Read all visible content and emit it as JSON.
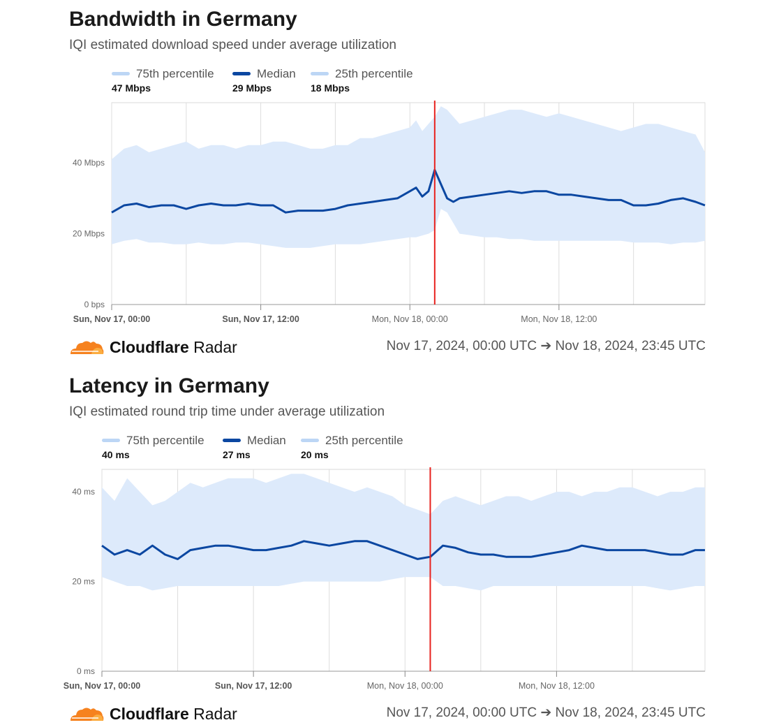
{
  "charts": [
    {
      "title": "Bandwidth in Germany",
      "subtitle": "IQI estimated download speed under average utilization",
      "legend": [
        {
          "name": "75th percentile",
          "value": "47 Mbps",
          "color": "#bcd6f5"
        },
        {
          "name": "Median",
          "value": "29 Mbps",
          "color": "#0b47a1"
        },
        {
          "name": "25th percentile",
          "value": "18 Mbps",
          "color": "#bcd6f5"
        }
      ],
      "brand": {
        "name_bold": "Cloudflare",
        "name_regular": " Radar"
      },
      "date_range": "Nov 17, 2024, 00:00 UTC ➔ Nov 18, 2024, 23:45 UTC"
    },
    {
      "title": "Latency in Germany",
      "subtitle": "IQI estimated round trip time under average utilization",
      "legend": [
        {
          "name": "75th percentile",
          "value": "40 ms",
          "color": "#bcd6f5"
        },
        {
          "name": "Median",
          "value": "27 ms",
          "color": "#0b47a1"
        },
        {
          "name": "25th percentile",
          "value": "20 ms",
          "color": "#bcd6f5"
        }
      ],
      "brand": {
        "name_bold": "Cloudflare",
        "name_regular": " Radar"
      },
      "date_range": "Nov 17, 2024, 00:00 UTC ➔ Nov 18, 2024, 23:45 UTC"
    }
  ],
  "chart_data": [
    {
      "type": "area",
      "title": "Bandwidth in Germany",
      "unit": "Mbps",
      "ylim": [
        0,
        57
      ],
      "yticks": [
        0,
        20,
        40
      ],
      "ytick_labels": [
        "0 bps",
        "20 Mbps",
        "40 Mbps"
      ],
      "xlim": [
        0,
        47.75
      ],
      "xticks": [
        0,
        12,
        24,
        36
      ],
      "xtick_labels": [
        "Sun, Nov 17, 00:00",
        "Sun, Nov 17, 12:00",
        "Mon, Nov 18, 00:00",
        "Mon, Nov 18, 12:00"
      ],
      "xtick_bold": [
        true,
        true,
        false,
        false
      ],
      "grid_x": [
        0,
        6,
        12,
        18,
        24,
        30,
        36,
        42,
        47.75
      ],
      "marker_x": 26,
      "marker_color": "#e8211d",
      "x": [
        0,
        1,
        2,
        3,
        4,
        5,
        6,
        7,
        8,
        9,
        10,
        11,
        12,
        13,
        14,
        15,
        16,
        17,
        18,
        19,
        20,
        21,
        22,
        23,
        24,
        24.5,
        25,
        25.5,
        26,
        26.5,
        27,
        27.5,
        28,
        29,
        30,
        31,
        32,
        33,
        34,
        35,
        36,
        37,
        38,
        39,
        40,
        41,
        42,
        43,
        44,
        45,
        46,
        47,
        47.75
      ],
      "series": [
        {
          "name": "75th percentile",
          "values": [
            41,
            44,
            45,
            43,
            44,
            45,
            46,
            44,
            45,
            45,
            44,
            45,
            45,
            46,
            46,
            45,
            44,
            44,
            45,
            45,
            47,
            47,
            48,
            49,
            50,
            52,
            49,
            51,
            53,
            56,
            55,
            53,
            51,
            52,
            53,
            54,
            55,
            55,
            54,
            53,
            54,
            53,
            52,
            51,
            50,
            49,
            50,
            51,
            51,
            50,
            49,
            48,
            43
          ]
        },
        {
          "name": "Median",
          "values": [
            26,
            28,
            28.5,
            27.5,
            28,
            28,
            27,
            28,
            28.5,
            28,
            28,
            28.5,
            28,
            28,
            26,
            26.5,
            26.5,
            26.5,
            27,
            28,
            28.5,
            29,
            29.5,
            30,
            32,
            33,
            30.5,
            32,
            38,
            34,
            30,
            29,
            30,
            30.5,
            31,
            31.5,
            32,
            31.5,
            32,
            32,
            31,
            31,
            30.5,
            30,
            29.5,
            29.5,
            28,
            28,
            28.5,
            29.5,
            30,
            29,
            28
          ]
        },
        {
          "name": "25th percentile",
          "values": [
            17,
            18,
            18.5,
            17.5,
            17.5,
            17,
            17,
            17.5,
            17,
            17,
            17.5,
            17.5,
            17,
            16.5,
            16,
            16,
            16,
            16.5,
            17,
            17,
            17,
            17.5,
            18,
            18.5,
            19,
            19,
            19.5,
            20,
            21,
            27,
            26,
            23,
            20,
            19.5,
            19,
            19,
            18.5,
            18.5,
            18,
            18,
            18,
            18,
            18,
            18,
            18,
            18,
            17.5,
            17.5,
            17.5,
            17,
            17.5,
            17.5,
            18
          ]
        }
      ]
    },
    {
      "type": "area",
      "title": "Latency in Germany",
      "unit": "ms",
      "ylim": [
        0,
        45
      ],
      "yticks": [
        0,
        20,
        40
      ],
      "ytick_labels": [
        "0 ms",
        "20 ms",
        "40 ms"
      ],
      "xlim": [
        0,
        47.75
      ],
      "xticks": [
        0,
        12,
        24,
        36
      ],
      "xtick_labels": [
        "Sun, Nov 17, 00:00",
        "Sun, Nov 17, 12:00",
        "Mon, Nov 18, 00:00",
        "Mon, Nov 18, 12:00"
      ],
      "xtick_bold": [
        true,
        true,
        false,
        false
      ],
      "grid_x": [
        0,
        6,
        12,
        18,
        24,
        30,
        36,
        42,
        47.75
      ],
      "marker_x": 26,
      "marker_color": "#e8211d",
      "x": [
        0,
        1,
        2,
        3,
        4,
        5,
        6,
        7,
        8,
        9,
        10,
        11,
        12,
        13,
        14,
        15,
        16,
        17,
        18,
        19,
        20,
        21,
        22,
        23,
        24,
        25,
        26,
        27,
        28,
        29,
        30,
        31,
        32,
        33,
        34,
        35,
        36,
        37,
        38,
        39,
        40,
        41,
        42,
        43,
        44,
        45,
        46,
        47,
        47.75
      ],
      "series": [
        {
          "name": "75th percentile",
          "values": [
            41,
            38,
            43,
            40,
            37,
            38,
            40,
            42,
            41,
            42,
            43,
            43,
            43,
            42,
            43,
            44,
            44,
            43,
            42,
            41,
            40,
            41,
            40,
            39,
            37,
            36,
            35,
            38,
            39,
            38,
            37,
            38,
            39,
            39,
            38,
            39,
            40,
            40,
            39,
            40,
            40,
            41,
            41,
            40,
            39,
            40,
            40,
            41,
            41
          ]
        },
        {
          "name": "Median",
          "values": [
            28,
            26,
            27,
            26,
            28,
            26,
            25,
            27,
            27.5,
            28,
            28,
            27.5,
            27,
            27,
            27.5,
            28,
            29,
            28.5,
            28,
            28.5,
            29,
            29,
            28,
            27,
            26,
            25,
            25.5,
            28,
            27.5,
            26.5,
            26,
            26,
            25.5,
            25.5,
            25.5,
            26,
            26.5,
            27,
            28,
            27.5,
            27,
            27,
            27,
            27,
            26.5,
            26,
            26,
            27,
            27
          ]
        },
        {
          "name": "25th percentile",
          "values": [
            21,
            20,
            19,
            19,
            18,
            18.5,
            19,
            19,
            19,
            19,
            19,
            19,
            19,
            19,
            19,
            19.5,
            20,
            20,
            20,
            20,
            20,
            20,
            20,
            20.5,
            21,
            21,
            21,
            19,
            19,
            18.5,
            18,
            19,
            19,
            19,
            19,
            19,
            19,
            19,
            19,
            19,
            19,
            19,
            19,
            19,
            18.5,
            18,
            18.5,
            19,
            19
          ]
        }
      ]
    }
  ]
}
